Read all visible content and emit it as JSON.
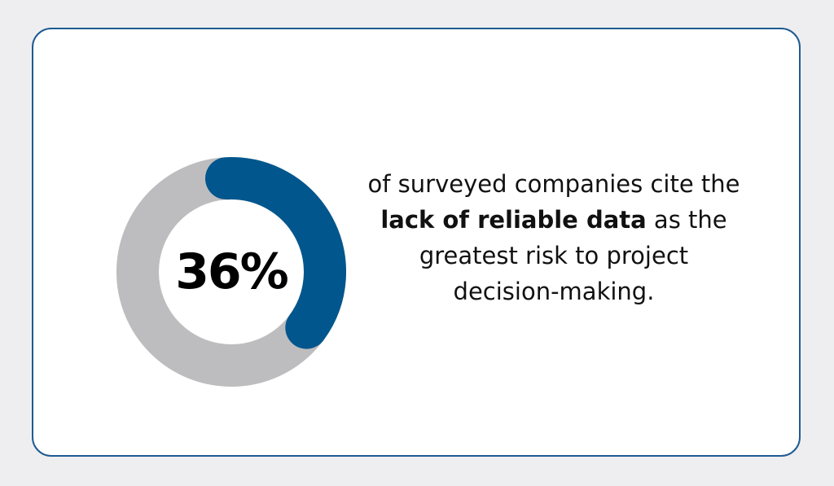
{
  "chart_data": {
    "type": "pie",
    "style": "donut",
    "values": [
      36,
      64
    ],
    "percent": 36,
    "value_label": "36%",
    "colors": {
      "filled": "#00568d",
      "remaining": "#bdbdbf"
    }
  },
  "statement": {
    "line1": "of surveyed companies cite the",
    "highlight": "lack of reliable data",
    "after_highlight": " as the",
    "line3": "greatest risk to project",
    "line4": "decision-making."
  },
  "colors": {
    "background": "#eeeef0",
    "card_border": "#1f5a92",
    "card_fill": "#ffffff"
  }
}
